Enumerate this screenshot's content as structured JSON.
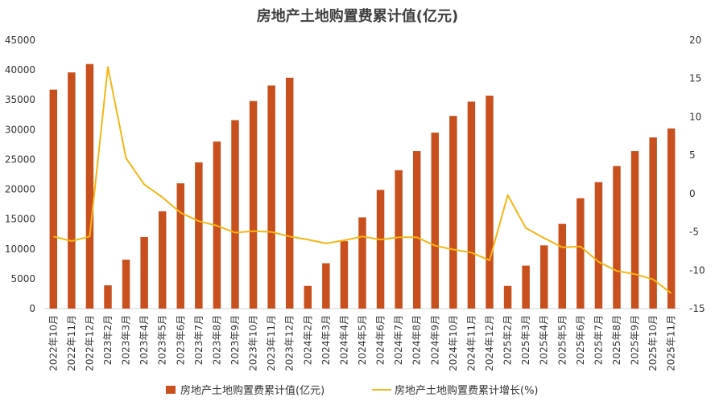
{
  "chart_data": {
    "type": "bar",
    "title": "房地产土地购置费累计值(亿元)",
    "categories": [
      "2022年10月",
      "2022年11月",
      "2022年12月",
      "2023年2月",
      "2023年3月",
      "2023年4月",
      "2023年5月",
      "2023年6月",
      "2023年7月",
      "2023年8月",
      "2023年9月",
      "2023年10月",
      "2023年11月",
      "2023年12月",
      "2024年2月",
      "2024年3月",
      "2024年4月",
      "2024年5月",
      "2024年6月",
      "2024年7月",
      "2024年8月",
      "2024年9月",
      "2024年10月",
      "2024年11月",
      "2024年12月",
      "2025年2月",
      "2025年3月",
      "2025年4月",
      "2025年5月",
      "2025年6月",
      "2025年7月",
      "2025年8月",
      "2025年9月",
      "2025年10月",
      "2025年11月"
    ],
    "series": [
      {
        "name": "房地产土地购置费累计值(亿元)",
        "type": "bar",
        "axis": "left",
        "values": [
          36700,
          39600,
          41000,
          3900,
          8200,
          12000,
          16300,
          21000,
          24500,
          28000,
          31600,
          34800,
          37400,
          38700,
          3800,
          7600,
          11300,
          15300,
          19900,
          23200,
          26400,
          29500,
          32300,
          34700,
          35700,
          3800,
          7200,
          10600,
          14200,
          18500,
          21200,
          23900,
          26400,
          28700,
          30200
        ]
      },
      {
        "name": "房地产土地购置费累计增长(%)",
        "type": "line",
        "axis": "right",
        "values": [
          -5.6,
          -6.2,
          -5.6,
          16.5,
          4.6,
          1.2,
          -0.5,
          -2.5,
          -3.6,
          -4.2,
          -5.1,
          -4.9,
          -5.0,
          -5.6,
          -6.0,
          -6.5,
          -6.1,
          -5.6,
          -6.0,
          -5.7,
          -5.7,
          -6.8,
          -7.3,
          -7.7,
          -8.7,
          -0.2,
          -4.5,
          -5.8,
          -7.0,
          -6.9,
          -8.9,
          -10.1,
          -10.5,
          -11.2,
          -13.0
        ]
      }
    ],
    "left_axis": {
      "ylim": [
        0,
        45000
      ],
      "ticks": [
        "0",
        "5000",
        "10000",
        "15000",
        "20000",
        "25000",
        "30000",
        "35000",
        "40000",
        "45000"
      ]
    },
    "right_axis": {
      "ylim": [
        -15,
        20
      ],
      "ticks": [
        "-15",
        "-10",
        "-5",
        "0",
        "5",
        "10",
        "15",
        "20"
      ]
    },
    "legend": {
      "position": "bottom",
      "bar_label": "房地产土地购置费累计值(亿元)",
      "line_label": "房地产土地购置费累计增长(%)"
    },
    "colors": {
      "bar": "#C8501E",
      "line": "#F5B514",
      "axis_text": "#333333",
      "title": "#404040"
    },
    "grid": false
  }
}
